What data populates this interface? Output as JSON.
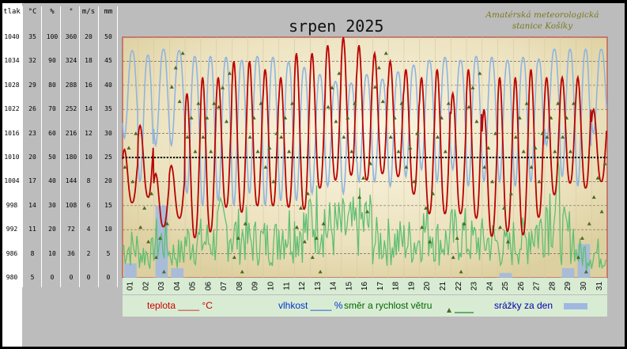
{
  "chart_data": {
    "type": "line",
    "title": "srpen 2025",
    "station_line1": "Amatérská meteorologická",
    "station_line2": "stanice Košíky",
    "columns": [
      {
        "header": "tlak",
        "ticks": [
          "1040",
          "1034",
          "1028",
          "1022",
          "1016",
          "1010",
          "1004",
          "998",
          "992",
          "986",
          "980"
        ]
      },
      {
        "header": "°C",
        "ticks": [
          "35",
          "32",
          "29",
          "26",
          "23",
          "20",
          "17",
          "14",
          "11",
          "8",
          "5"
        ]
      },
      {
        "header": "%",
        "ticks": [
          "100",
          "90",
          "80",
          "70",
          "60",
          "50",
          "40",
          "30",
          "20",
          "10",
          "0"
        ]
      },
      {
        "header": "°",
        "ticks": [
          "360",
          "324",
          "288",
          "252",
          "216",
          "180",
          "144",
          "108",
          "72",
          "36",
          "0"
        ]
      },
      {
        "header": "m/s",
        "ticks": [
          "20",
          "18",
          "16",
          "14",
          "12",
          "10",
          "8",
          "6",
          "4",
          "2",
          "0"
        ]
      },
      {
        "header": "mm",
        "ticks": [
          "50",
          "45",
          "40",
          "35",
          "30",
          "25",
          "20",
          "15",
          "10",
          "5",
          "0"
        ]
      }
    ],
    "x_ticks": [
      "01",
      "02",
      "03",
      "04",
      "05",
      "06",
      "07",
      "08",
      "09",
      "10",
      "11",
      "12",
      "13",
      "14",
      "15",
      "16",
      "17",
      "18",
      "19",
      "20",
      "21",
      "22",
      "23",
      "24",
      "25",
      "26",
      "27",
      "28",
      "29",
      "30",
      "31"
    ],
    "ylim_temperature": [
      5,
      35
    ],
    "ylim_humidity": [
      0,
      100
    ],
    "ylim_wind_direction": [
      0,
      360
    ],
    "ylim_wind_speed": [
      0,
      20
    ],
    "ylim_rain": [
      0,
      50
    ],
    "ylim_pressure": [
      980,
      1040
    ],
    "grid": true,
    "legend": [
      {
        "label": "teplota ____ °C",
        "color": "#cc0000"
      },
      {
        "label": "vlhkost ____ %",
        "color": "#0033cc"
      },
      {
        "label": "směr a rychlost větru",
        "color": "#006600"
      },
      {
        "label": "srážky za den",
        "color": "#0000aa"
      }
    ],
    "series": [
      {
        "name": "teplota",
        "color": "#bb0000",
        "daily_min": [
          14,
          16,
          11,
          13,
          10,
          10,
          14,
          13,
          14,
          14,
          14,
          13,
          16,
          17,
          18,
          17,
          18,
          18,
          16,
          13,
          13,
          13,
          13,
          10,
          11,
          10,
          12,
          15,
          17,
          16,
          17
        ],
        "daily_max": [
          21,
          24,
          18,
          19,
          28,
          30,
          30,
          32,
          32,
          31,
          30,
          33,
          33,
          34,
          35,
          34,
          33,
          32,
          31,
          30,
          31,
          28,
          31,
          26,
          30,
          30,
          31,
          30,
          30,
          30,
          26
        ]
      },
      {
        "name": "vlhkost",
        "color": "#8fb4e0",
        "daily_min": [
          58,
          40,
          55,
          55,
          35,
          30,
          32,
          30,
          35,
          30,
          32,
          32,
          35,
          38,
          35,
          40,
          40,
          38,
          42,
          45,
          40,
          45,
          38,
          40,
          40,
          38,
          40,
          55,
          42,
          38,
          60
        ],
        "daily_max": [
          95,
          92,
          95,
          95,
          92,
          92,
          92,
          90,
          92,
          92,
          90,
          88,
          85,
          82,
          80,
          85,
          82,
          85,
          88,
          90,
          92,
          90,
          92,
          92,
          90,
          92,
          90,
          95,
          95,
          95,
          95
        ]
      },
      {
        "name": "rychlost větru",
        "color": "#5fbf72",
        "daily_mean": [
          2.5,
          2,
          3,
          2,
          3,
          3,
          4,
          3.5,
          3,
          3,
          4,
          4,
          5,
          4,
          4,
          4.5,
          3,
          3,
          3,
          4,
          3,
          3.5,
          3,
          3,
          2.5,
          3,
          4,
          6,
          3.5,
          2,
          2
        ]
      },
      {
        "name": "směr větru",
        "color": "#4a6a20",
        "daily_mean": [
          180,
          90,
          45,
          300,
          225,
          225,
          270,
          45,
          225,
          180,
          225,
          90,
          45,
          270,
          225,
          135,
          300,
          225,
          180,
          90,
          225,
          45,
          270,
          180,
          90,
          225,
          180,
          225,
          225,
          45,
          135
        ]
      },
      {
        "name": "srážky za den",
        "color": "#a0b8e0",
        "values": [
          3,
          0,
          15,
          2,
          0,
          0,
          0,
          0,
          0,
          0,
          0,
          0,
          0,
          0,
          0,
          0,
          0,
          0,
          0,
          0,
          0,
          0,
          0,
          0,
          1,
          0,
          0,
          0,
          2,
          7,
          0
        ]
      },
      {
        "name": "tlak",
        "color": "#000000",
        "values": [
          1010
        ]
      }
    ]
  }
}
